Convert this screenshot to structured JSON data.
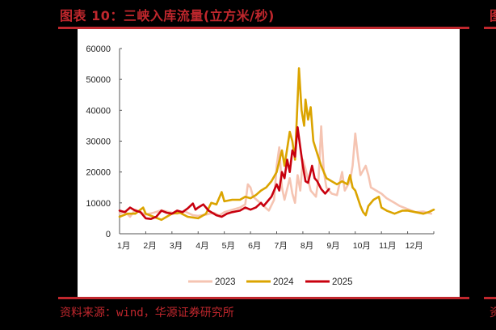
{
  "header": {
    "title": "图表 10：三峡入库流量(立方米/秒)",
    "right_cut_title": "图"
  },
  "footer": {
    "source": "资料来源：wind，华源证券研究所",
    "right_cut_source": "资"
  },
  "colors": {
    "accent": "#c0272d",
    "s2023": "#f5c4b2",
    "s2024": "#dba400",
    "s2025": "#c8000e"
  },
  "chart_data": {
    "type": "line",
    "title": "三峡入库流量(立方米/秒)",
    "xlabel": "",
    "ylabel": "",
    "ylim": [
      0,
      60000
    ],
    "yticks": [
      0,
      10000,
      20000,
      30000,
      40000,
      50000,
      60000
    ],
    "ytick_labels": [
      "0",
      "10000",
      "20000",
      "30000",
      "40000",
      "50000",
      "60000"
    ],
    "xticks": [
      "1月",
      "2月",
      "3月",
      "4月",
      "5月",
      "6月",
      "7月",
      "8月",
      "9月",
      "10月",
      "11月",
      "12月"
    ],
    "x_unit": "month (1.0 = Jan 1, 13.0 = Dec 31)",
    "grid": false,
    "legend_position": "bottom",
    "legend": [
      "2023",
      "2024",
      "2025"
    ],
    "series": [
      {
        "name": "2023",
        "color": "#f5c4b2",
        "points": [
          [
            1.0,
            6500
          ],
          [
            1.2,
            7200
          ],
          [
            1.4,
            5500
          ],
          [
            1.6,
            7800
          ],
          [
            1.8,
            7000
          ],
          [
            2.0,
            6200
          ],
          [
            2.3,
            6800
          ],
          [
            2.6,
            7600
          ],
          [
            2.9,
            7000
          ],
          [
            3.2,
            6500
          ],
          [
            3.5,
            7200
          ],
          [
            3.8,
            6000
          ],
          [
            4.0,
            5800
          ],
          [
            4.3,
            6200
          ],
          [
            4.6,
            6800
          ],
          [
            4.8,
            5900
          ],
          [
            5.0,
            7000
          ],
          [
            5.2,
            7500
          ],
          [
            5.4,
            8000
          ],
          [
            5.6,
            8500
          ],
          [
            5.8,
            9500
          ],
          [
            5.9,
            16000
          ],
          [
            6.0,
            15000
          ],
          [
            6.1,
            12000
          ],
          [
            6.3,
            10500
          ],
          [
            6.5,
            9000
          ],
          [
            6.7,
            7500
          ],
          [
            6.9,
            11000
          ],
          [
            7.0,
            22000
          ],
          [
            7.1,
            28000
          ],
          [
            7.2,
            15000
          ],
          [
            7.3,
            11000
          ],
          [
            7.5,
            18000
          ],
          [
            7.6,
            13000
          ],
          [
            7.7,
            10000
          ],
          [
            7.8,
            19000
          ],
          [
            7.9,
            14000
          ],
          [
            8.0,
            24000
          ],
          [
            8.1,
            21000
          ],
          [
            8.3,
            14000
          ],
          [
            8.5,
            12000
          ],
          [
            8.6,
            18000
          ],
          [
            8.7,
            34800
          ],
          [
            8.8,
            20000
          ],
          [
            8.9,
            15000
          ],
          [
            9.1,
            13000
          ],
          [
            9.3,
            12500
          ],
          [
            9.5,
            20000
          ],
          [
            9.6,
            14000
          ],
          [
            9.8,
            17000
          ],
          [
            9.9,
            22000
          ],
          [
            10.0,
            32500
          ],
          [
            10.1,
            25000
          ],
          [
            10.2,
            19000
          ],
          [
            10.4,
            22000
          ],
          [
            10.5,
            19000
          ],
          [
            10.6,
            15000
          ],
          [
            10.8,
            14000
          ],
          [
            11.0,
            13000
          ],
          [
            11.2,
            11500
          ],
          [
            11.5,
            10000
          ],
          [
            11.7,
            9000
          ],
          [
            12.0,
            8000
          ],
          [
            12.3,
            7000
          ],
          [
            12.6,
            7200
          ],
          [
            12.9,
            6500
          ]
        ]
      },
      {
        "name": "2024",
        "color": "#dba400",
        "points": [
          [
            1.0,
            5500
          ],
          [
            1.3,
            6500
          ],
          [
            1.6,
            6500
          ],
          [
            1.9,
            8500
          ],
          [
            2.0,
            6500
          ],
          [
            2.3,
            5500
          ],
          [
            2.6,
            4500
          ],
          [
            2.8,
            5500
          ],
          [
            3.0,
            6500
          ],
          [
            3.3,
            6800
          ],
          [
            3.6,
            5500
          ],
          [
            4.0,
            5000
          ],
          [
            4.3,
            6500
          ],
          [
            4.5,
            10000
          ],
          [
            4.7,
            9500
          ],
          [
            4.9,
            13500
          ],
          [
            5.0,
            10500
          ],
          [
            5.3,
            11000
          ],
          [
            5.6,
            11000
          ],
          [
            5.8,
            12000
          ],
          [
            6.0,
            11500
          ],
          [
            6.2,
            12500
          ],
          [
            6.4,
            14000
          ],
          [
            6.6,
            15000
          ],
          [
            6.8,
            17000
          ],
          [
            7.0,
            20000
          ],
          [
            7.2,
            27000
          ],
          [
            7.3,
            22000
          ],
          [
            7.5,
            33000
          ],
          [
            7.6,
            30000
          ],
          [
            7.7,
            24000
          ],
          [
            7.85,
            53600
          ],
          [
            7.95,
            40000
          ],
          [
            8.05,
            35000
          ],
          [
            8.1,
            43500
          ],
          [
            8.2,
            37000
          ],
          [
            8.3,
            41000
          ],
          [
            8.4,
            30000
          ],
          [
            8.55,
            26000
          ],
          [
            8.7,
            22000
          ],
          [
            8.9,
            18000
          ],
          [
            9.1,
            17000
          ],
          [
            9.3,
            16000
          ],
          [
            9.5,
            17000
          ],
          [
            9.7,
            16000
          ],
          [
            9.8,
            19000
          ],
          [
            9.9,
            15000
          ],
          [
            10.0,
            14000
          ],
          [
            10.2,
            9000
          ],
          [
            10.3,
            7000
          ],
          [
            10.4,
            6000
          ],
          [
            10.5,
            9000
          ],
          [
            10.7,
            11000
          ],
          [
            10.9,
            12000
          ],
          [
            11.0,
            8500
          ],
          [
            11.2,
            7500
          ],
          [
            11.5,
            6500
          ],
          [
            11.8,
            7500
          ],
          [
            12.0,
            7500
          ],
          [
            12.3,
            7000
          ],
          [
            12.6,
            6500
          ],
          [
            12.8,
            7000
          ],
          [
            13.0,
            7800
          ]
        ]
      },
      {
        "name": "2025",
        "color": "#c8000e",
        "points": [
          [
            1.0,
            7500
          ],
          [
            1.2,
            7000
          ],
          [
            1.4,
            8500
          ],
          [
            1.6,
            7500
          ],
          [
            1.8,
            7000
          ],
          [
            2.0,
            5000
          ],
          [
            2.2,
            4800
          ],
          [
            2.4,
            5500
          ],
          [
            2.6,
            7500
          ],
          [
            2.8,
            6800
          ],
          [
            3.0,
            6500
          ],
          [
            3.2,
            7500
          ],
          [
            3.4,
            7000
          ],
          [
            3.6,
            8200
          ],
          [
            3.8,
            9800
          ],
          [
            3.9,
            7800
          ],
          [
            4.0,
            8500
          ],
          [
            4.2,
            9500
          ],
          [
            4.4,
            7500
          ],
          [
            4.7,
            6000
          ],
          [
            4.9,
            5500
          ],
          [
            5.1,
            6500
          ],
          [
            5.3,
            7000
          ],
          [
            5.6,
            7500
          ],
          [
            5.8,
            8500
          ],
          [
            6.0,
            7800
          ],
          [
            6.2,
            8500
          ],
          [
            6.4,
            10000
          ],
          [
            6.5,
            9000
          ],
          [
            6.7,
            11000
          ],
          [
            6.8,
            12000
          ],
          [
            7.0,
            16000
          ],
          [
            7.1,
            14000
          ],
          [
            7.2,
            20000
          ],
          [
            7.3,
            18000
          ],
          [
            7.4,
            24000
          ],
          [
            7.5,
            20000
          ],
          [
            7.6,
            27000
          ],
          [
            7.7,
            25000
          ],
          [
            7.8,
            34500
          ],
          [
            7.9,
            28000
          ],
          [
            8.0,
            22000
          ],
          [
            8.1,
            17000
          ],
          [
            8.2,
            16500
          ],
          [
            8.35,
            22000
          ],
          [
            8.45,
            18000
          ],
          [
            8.55,
            17000
          ],
          [
            8.7,
            14500
          ],
          [
            8.85,
            13000
          ],
          [
            9.0,
            14500
          ]
        ]
      }
    ]
  }
}
